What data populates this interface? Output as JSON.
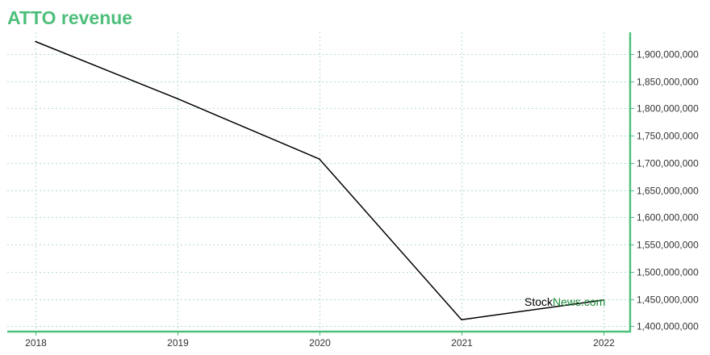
{
  "title": "ATTO revenue",
  "watermark": {
    "part1": "Stock",
    "part2": "News.com"
  },
  "colors": {
    "accent": "#4dbf7a",
    "line": "#000000",
    "grid": "#b6dcc6",
    "watermark_green": "#1e8a3c"
  },
  "chart_data": {
    "type": "line",
    "title": "ATTO revenue",
    "xlabel": "",
    "ylabel": "",
    "categories": [
      "2018",
      "2019",
      "2020",
      "2021",
      "2022"
    ],
    "series": [
      {
        "values": [
          1923000000,
          1818000000,
          1707000000,
          1412000000,
          1448000000
        ]
      }
    ],
    "ylim": [
      1390000000,
      1940000000
    ],
    "yticks": [
      1400000000,
      1450000000,
      1500000000,
      1550000000,
      1600000000,
      1650000000,
      1700000000,
      1750000000,
      1800000000,
      1850000000,
      1900000000
    ],
    "ytick_labels": [
      "1,400,000,000",
      "1,450,000,000",
      "1,500,000,000",
      "1,550,000,000",
      "1,600,000,000",
      "1,650,000,000",
      "1,700,000,000",
      "1,750,000,000",
      "1,800,000,000",
      "1,850,000,000",
      "1,900,000,000"
    ],
    "grid": true,
    "y_axis_side": "right",
    "legend": "none"
  }
}
